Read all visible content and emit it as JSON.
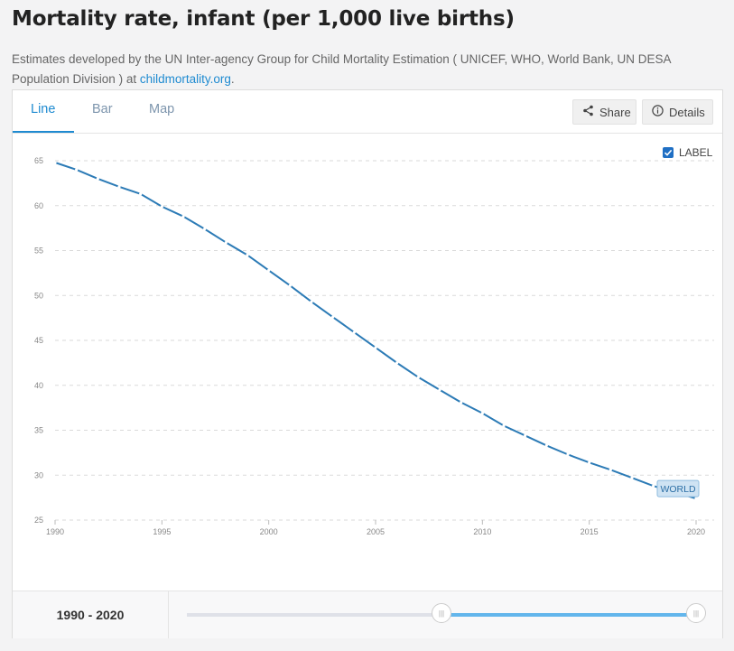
{
  "header": {
    "title": "Mortality rate, infant (per 1,000 live births)",
    "subtitle_text": "Estimates developed by the UN Inter-agency Group for Child Mortality Estimation ( UNICEF, WHO, World Bank, UN DESA Population Division ) at ",
    "subtitle_link": "childmortality.org",
    "subtitle_end": "."
  },
  "tabs": [
    {
      "label": "Line",
      "active": true
    },
    {
      "label": "Bar",
      "active": false
    },
    {
      "label": "Map",
      "active": false
    }
  ],
  "toolbar": {
    "share_label": "Share",
    "details_label": "Details"
  },
  "label_toggle": {
    "label": "LABEL",
    "checked": true
  },
  "colors": {
    "accent": "#1f8bd1",
    "series": "#2c7bb6",
    "slider_fill": "#63b6ec"
  },
  "chart_data": {
    "type": "line",
    "x": [
      1990,
      1991,
      1992,
      1993,
      1994,
      1995,
      1996,
      1997,
      1998,
      1999,
      2000,
      2001,
      2002,
      2003,
      2004,
      2005,
      2006,
      2007,
      2008,
      2009,
      2010,
      2011,
      2012,
      2013,
      2014,
      2015,
      2016,
      2017,
      2018,
      2019,
      2020
    ],
    "series": [
      {
        "name": "WORLD",
        "values": [
          64.8,
          64.0,
          63.0,
          62.1,
          61.3,
          59.9,
          58.8,
          57.4,
          55.9,
          54.5,
          52.8,
          51.1,
          49.3,
          47.6,
          45.9,
          44.2,
          42.5,
          40.9,
          39.5,
          38.1,
          36.9,
          35.5,
          34.4,
          33.3,
          32.3,
          31.4,
          30.6,
          29.7,
          28.8,
          28.1,
          27.4
        ]
      }
    ],
    "xticks": [
      1990,
      1995,
      2000,
      2005,
      2010,
      2015,
      2020
    ],
    "yticks": [
      25,
      30,
      35,
      40,
      45,
      50,
      55,
      60,
      65
    ],
    "xlim": [
      1990,
      2020
    ],
    "ylim": [
      25,
      65
    ],
    "grid": true,
    "series_label": "WORLD"
  },
  "range": {
    "label": "1990 - 2020",
    "start_fraction": 0.5,
    "end_fraction": 1.0
  }
}
